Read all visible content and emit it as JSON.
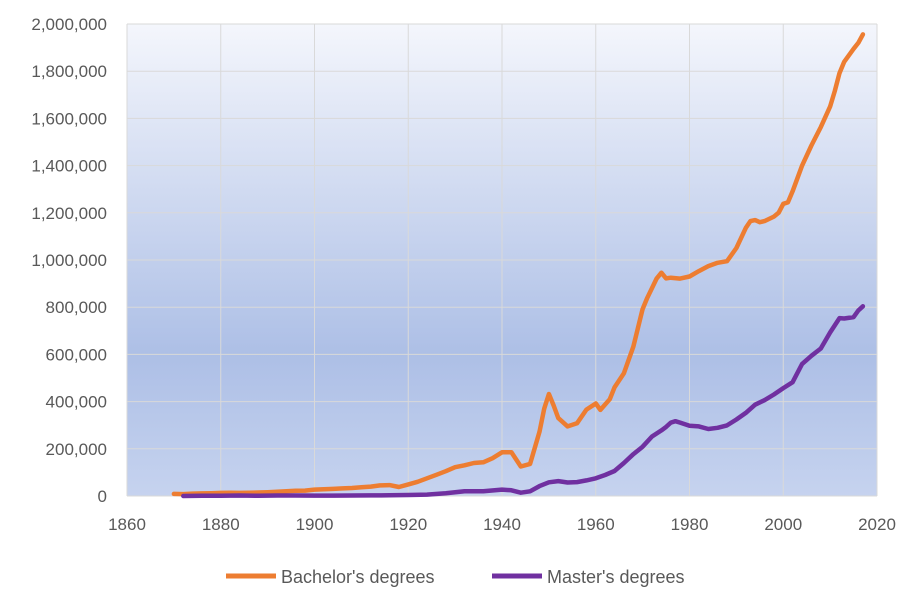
{
  "chart_data": {
    "type": "line",
    "title": "",
    "xlabel": "",
    "ylabel": "",
    "xlim": [
      1860,
      2020
    ],
    "ylim": [
      0,
      2000000
    ],
    "x_ticks": [
      1860,
      1880,
      1900,
      1920,
      1940,
      1960,
      1980,
      2000,
      2020
    ],
    "x_tick_labels": [
      "1860",
      "1880",
      "1900",
      "1920",
      "1940",
      "1960",
      "1980",
      "2000",
      "2020"
    ],
    "y_ticks": [
      0,
      200000,
      400000,
      600000,
      800000,
      1000000,
      1200000,
      1400000,
      1600000,
      1800000,
      2000000
    ],
    "y_tick_labels": [
      "0",
      "200,000",
      "400,000",
      "600,000",
      "800,000",
      "1,000,000",
      "1,200,000",
      "1,400,000",
      "1,600,000",
      "1,800,000",
      "2,000,000"
    ],
    "grid": true,
    "legend_position": "bottom",
    "series": [
      {
        "name": "Bachelor's degrees",
        "color": "#ed7d31",
        "points": [
          [
            1870,
            9000
          ],
          [
            1872,
            8000
          ],
          [
            1874,
            10000
          ],
          [
            1876,
            11000
          ],
          [
            1878,
            12000
          ],
          [
            1880,
            13000
          ],
          [
            1882,
            14000
          ],
          [
            1884,
            13000
          ],
          [
            1886,
            14000
          ],
          [
            1888,
            15000
          ],
          [
            1890,
            16000
          ],
          [
            1892,
            18000
          ],
          [
            1894,
            20000
          ],
          [
            1896,
            22000
          ],
          [
            1898,
            23000
          ],
          [
            1900,
            27000
          ],
          [
            1902,
            29000
          ],
          [
            1904,
            30000
          ],
          [
            1906,
            32000
          ],
          [
            1908,
            34000
          ],
          [
            1910,
            37000
          ],
          [
            1912,
            40000
          ],
          [
            1914,
            45000
          ],
          [
            1916,
            46000
          ],
          [
            1918,
            38000
          ],
          [
            1920,
            49000
          ],
          [
            1922,
            60000
          ],
          [
            1924,
            75000
          ],
          [
            1926,
            90000
          ],
          [
            1928,
            105000
          ],
          [
            1930,
            122000
          ],
          [
            1932,
            130000
          ],
          [
            1934,
            140000
          ],
          [
            1936,
            143000
          ],
          [
            1938,
            160000
          ],
          [
            1940,
            185000
          ],
          [
            1942,
            185000
          ],
          [
            1944,
            125000
          ],
          [
            1946,
            136000
          ],
          [
            1948,
            272000
          ],
          [
            1949,
            370000
          ],
          [
            1950,
            432000
          ],
          [
            1951,
            384000
          ],
          [
            1952,
            330000
          ],
          [
            1954,
            295000
          ],
          [
            1956,
            308000
          ],
          [
            1958,
            366000
          ],
          [
            1960,
            392000
          ],
          [
            1961,
            365000
          ],
          [
            1963,
            410000
          ],
          [
            1964,
            460000
          ],
          [
            1966,
            520000
          ],
          [
            1968,
            632000
          ],
          [
            1970,
            792000
          ],
          [
            1971,
            840000
          ],
          [
            1973,
            922000
          ],
          [
            1974,
            946000
          ],
          [
            1975,
            922000
          ],
          [
            1976,
            925000
          ],
          [
            1978,
            921000
          ],
          [
            1980,
            930000
          ],
          [
            1982,
            953000
          ],
          [
            1984,
            974000
          ],
          [
            1986,
            988000
          ],
          [
            1988,
            995000
          ],
          [
            1990,
            1051000
          ],
          [
            1992,
            1136000
          ],
          [
            1993,
            1165000
          ],
          [
            1994,
            1169000
          ],
          [
            1995,
            1160000
          ],
          [
            1996,
            1165000
          ],
          [
            1998,
            1184000
          ],
          [
            1999,
            1200000
          ],
          [
            2000,
            1238000
          ],
          [
            2001,
            1244000
          ],
          [
            2002,
            1291000
          ],
          [
            2004,
            1399000
          ],
          [
            2006,
            1485000
          ],
          [
            2008,
            1563000
          ],
          [
            2010,
            1650000
          ],
          [
            2011,
            1716000
          ],
          [
            2012,
            1792000
          ],
          [
            2013,
            1840000
          ],
          [
            2015,
            1895000
          ],
          [
            2016,
            1920000
          ],
          [
            2017,
            1956000
          ]
        ]
      },
      {
        "name": "Master's degrees",
        "color": "#7030a0",
        "points": [
          [
            1872,
            0
          ],
          [
            1876,
            1000
          ],
          [
            1880,
            1000
          ],
          [
            1884,
            2000
          ],
          [
            1888,
            1000
          ],
          [
            1892,
            2000
          ],
          [
            1896,
            2000
          ],
          [
            1900,
            1600
          ],
          [
            1904,
            1700
          ],
          [
            1908,
            2000
          ],
          [
            1912,
            2500
          ],
          [
            1916,
            3000
          ],
          [
            1920,
            4300
          ],
          [
            1924,
            6000
          ],
          [
            1928,
            12000
          ],
          [
            1932,
            20000
          ],
          [
            1936,
            20000
          ],
          [
            1940,
            27000
          ],
          [
            1942,
            24000
          ],
          [
            1944,
            14000
          ],
          [
            1946,
            20000
          ],
          [
            1948,
            42000
          ],
          [
            1950,
            58000
          ],
          [
            1952,
            63000
          ],
          [
            1954,
            57000
          ],
          [
            1956,
            59000
          ],
          [
            1958,
            66000
          ],
          [
            1960,
            75000
          ],
          [
            1962,
            89000
          ],
          [
            1964,
            106000
          ],
          [
            1966,
            140000
          ],
          [
            1968,
            177000
          ],
          [
            1970,
            209000
          ],
          [
            1972,
            252000
          ],
          [
            1974,
            278000
          ],
          [
            1975,
            293000
          ],
          [
            1976,
            311000
          ],
          [
            1977,
            317000
          ],
          [
            1978,
            311000
          ],
          [
            1980,
            298000
          ],
          [
            1982,
            295000
          ],
          [
            1984,
            284000
          ],
          [
            1986,
            289000
          ],
          [
            1988,
            299000
          ],
          [
            1990,
            324000
          ],
          [
            1992,
            352000
          ],
          [
            1994,
            387000
          ],
          [
            1996,
            406000
          ],
          [
            1998,
            430000
          ],
          [
            2000,
            457000
          ],
          [
            2002,
            482000
          ],
          [
            2004,
            559000
          ],
          [
            2006,
            594000
          ],
          [
            2008,
            625000
          ],
          [
            2010,
            693000
          ],
          [
            2012,
            754000
          ],
          [
            2013,
            752000
          ],
          [
            2015,
            758000
          ],
          [
            2016,
            786000
          ],
          [
            2017,
            804000
          ]
        ]
      }
    ]
  }
}
